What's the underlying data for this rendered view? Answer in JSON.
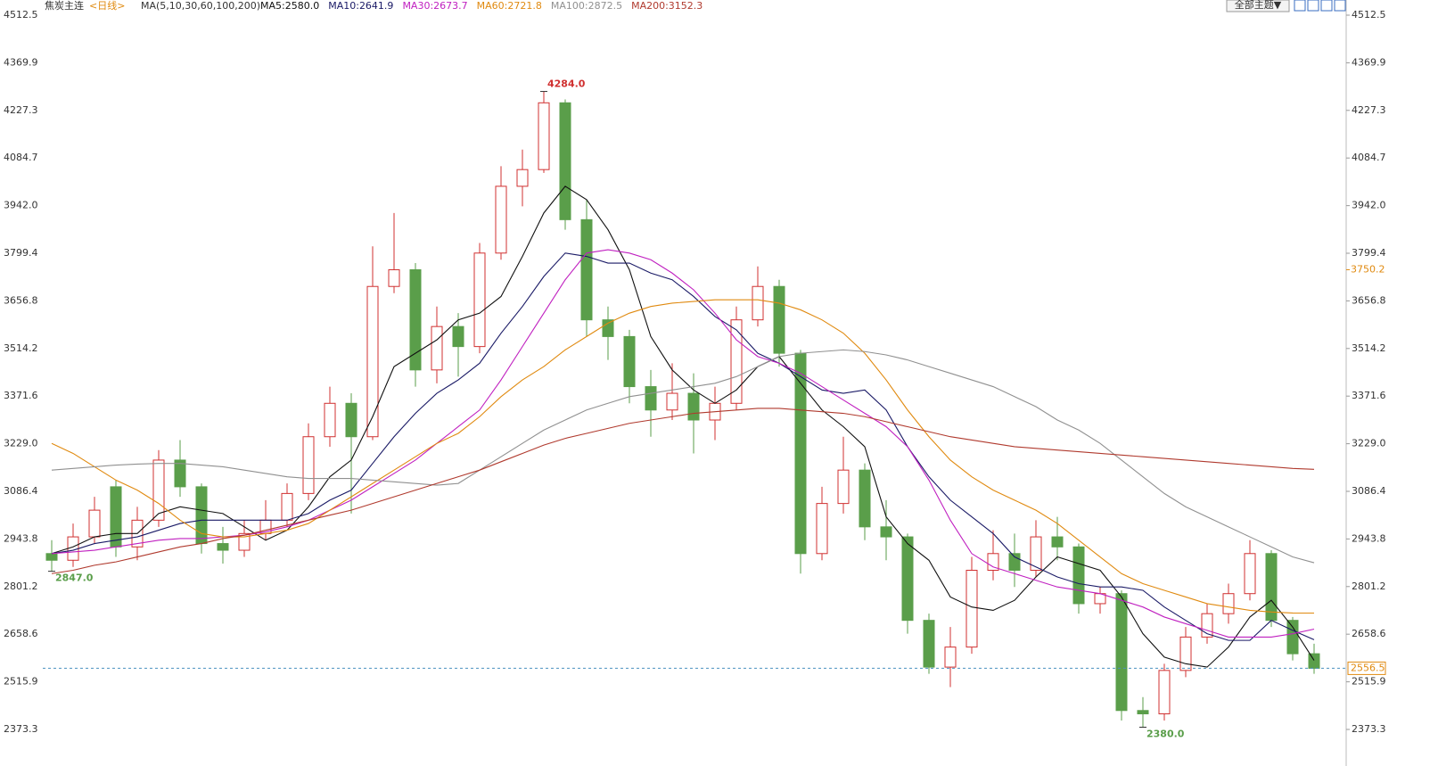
{
  "chart_data": {
    "type": "candlestick",
    "title": "焦炭主连",
    "period": "<日线>",
    "indicator": "MA(5,10,30,60,100,200)",
    "theme_button": "全部主题▼",
    "ylim": [
      2373.3,
      4512.5
    ],
    "yticks": [
      {
        "value": 2373.3,
        "label": "2373.3"
      },
      {
        "value": 2515.9,
        "label": "2515.9"
      },
      {
        "value": 2658.6,
        "label": "2658.6"
      },
      {
        "value": 2801.2,
        "label": "2801.2"
      },
      {
        "value": 2943.8,
        "label": "2943.8"
      },
      {
        "value": 3086.4,
        "label": "3086.4"
      },
      {
        "value": 3229.0,
        "label": "3229.0"
      },
      {
        "value": 3371.6,
        "label": "3371.6"
      },
      {
        "value": 3514.2,
        "label": "3514.2"
      },
      {
        "value": 3656.8,
        "label": "3656.8"
      },
      {
        "value": 3799.4,
        "label": "3799.4"
      },
      {
        "value": 3942.0,
        "label": "3942.0"
      },
      {
        "value": 4084.7,
        "label": "4084.7"
      },
      {
        "value": 4227.3,
        "label": "4227.3"
      },
      {
        "value": 4369.9,
        "label": "4369.9"
      },
      {
        "value": 4512.5,
        "label": "4512.5"
      }
    ],
    "up_color": "#d03030",
    "down_color": "#5a9e4a",
    "open": [
      2900,
      2880,
      2950,
      3100,
      2920,
      3000,
      3180,
      3100,
      2930,
      2910,
      2960,
      3000,
      3080,
      3250,
      3350,
      3250,
      3700,
      3750,
      3450,
      3580,
      3520,
      3800,
      4000,
      4050,
      4250,
      3900,
      3600,
      3550,
      3400,
      3330,
      3380,
      3300,
      3350,
      3600,
      3700,
      3500,
      2900,
      3050,
      3150,
      2980,
      2950,
      2700,
      2560,
      2620,
      2850,
      2900,
      2850,
      2950,
      2920,
      2750,
      2780,
      2430,
      2420,
      2550,
      2650,
      2720,
      2780,
      2900,
      2700,
      2600
    ],
    "high": [
      2940,
      2990,
      3070,
      3120,
      3040,
      3210,
      3240,
      3110,
      2980,
      3000,
      3060,
      3110,
      3290,
      3400,
      3380,
      3820,
      3920,
      3770,
      3640,
      3620,
      3830,
      4060,
      4110,
      4284,
      4260,
      3960,
      3640,
      3570,
      3450,
      3470,
      3440,
      3400,
      3640,
      3760,
      3720,
      3510,
      3100,
      3250,
      3170,
      3060,
      2960,
      2720,
      2680,
      2890,
      2970,
      2960,
      3000,
      3010,
      2930,
      2800,
      2790,
      2470,
      2570,
      2680,
      2750,
      2810,
      2940,
      2910,
      2710,
      2630
    ],
    "low": [
      2847,
      2860,
      2930,
      2890,
      2880,
      2980,
      3070,
      2900,
      2870,
      2890,
      2940,
      2980,
      3060,
      3220,
      3020,
      3240,
      3680,
      3400,
      3410,
      3430,
      3500,
      3780,
      3940,
      4040,
      3870,
      3550,
      3480,
      3350,
      3250,
      3300,
      3200,
      3240,
      3330,
      3580,
      3460,
      2840,
      2880,
      3020,
      2940,
      2880,
      2660,
      2540,
      2500,
      2600,
      2820,
      2800,
      2830,
      2880,
      2720,
      2720,
      2400,
      2380,
      2400,
      2530,
      2630,
      2690,
      2760,
      2680,
      2580,
      2540
    ],
    "close": [
      2880,
      2950,
      3030,
      2920,
      3000,
      3180,
      3100,
      2930,
      2910,
      2960,
      3000,
      3080,
      3250,
      3350,
      3250,
      3700,
      3750,
      3450,
      3580,
      3520,
      3800,
      4000,
      4050,
      4250,
      3900,
      3600,
      3550,
      3400,
      3330,
      3380,
      3300,
      3350,
      3600,
      3700,
      3500,
      2900,
      3050,
      3150,
      2980,
      2950,
      2700,
      2560,
      2620,
      2850,
      2900,
      2850,
      2950,
      2920,
      2750,
      2780,
      2430,
      2420,
      2550,
      2650,
      2720,
      2780,
      2900,
      2700,
      2600,
      2556.5
    ],
    "series": [
      {
        "name": "MA5:2580.0",
        "color": "#111111",
        "values": [
          2900,
          2920,
          2950,
          2960,
          2960,
          3020,
          3040,
          3030,
          3020,
          2980,
          2940,
          2970,
          3040,
          3130,
          3180,
          3310,
          3460,
          3500,
          3540,
          3600,
          3620,
          3670,
          3790,
          3920,
          4000,
          3960,
          3870,
          3750,
          3550,
          3450,
          3390,
          3350,
          3390,
          3460,
          3490,
          3410,
          3330,
          3280,
          3220,
          3010,
          2930,
          2880,
          2770,
          2740,
          2730,
          2760,
          2830,
          2890,
          2870,
          2850,
          2770,
          2660,
          2590,
          2570,
          2560,
          2620,
          2710,
          2760,
          2680,
          2580
        ]
      },
      {
        "name": "MA10:2641.9",
        "color": "#1a1a66",
        "values": [
          2900,
          2910,
          2930,
          2940,
          2950,
          2970,
          2990,
          3000,
          3000,
          3000,
          3000,
          3000,
          3020,
          3060,
          3090,
          3170,
          3250,
          3320,
          3380,
          3420,
          3470,
          3560,
          3640,
          3730,
          3800,
          3790,
          3770,
          3770,
          3740,
          3720,
          3670,
          3610,
          3570,
          3500,
          3470,
          3430,
          3390,
          3380,
          3390,
          3330,
          3220,
          3130,
          3060,
          3010,
          2960,
          2890,
          2860,
          2830,
          2810,
          2800,
          2800,
          2790,
          2740,
          2700,
          2660,
          2640,
          2640,
          2700,
          2670,
          2641.9
        ]
      },
      {
        "name": "MA30:2673.7",
        "color": "#c020c0",
        "values": [
          2900,
          2905,
          2910,
          2920,
          2930,
          2940,
          2945,
          2945,
          2950,
          2955,
          2965,
          2980,
          3000,
          3030,
          3060,
          3100,
          3140,
          3180,
          3230,
          3280,
          3330,
          3420,
          3520,
          3620,
          3720,
          3800,
          3810,
          3800,
          3780,
          3740,
          3690,
          3620,
          3540,
          3490,
          3470,
          3440,
          3400,
          3360,
          3320,
          3280,
          3220,
          3120,
          3000,
          2900,
          2860,
          2840,
          2820,
          2800,
          2790,
          2780,
          2760,
          2740,
          2710,
          2690,
          2670,
          2650,
          2650,
          2650,
          2660,
          2673.7
        ]
      },
      {
        "name": "MA60:2721.8",
        "color": "#e08a10",
        "values": [
          3230,
          3200,
          3160,
          3120,
          3090,
          3050,
          3000,
          2960,
          2950,
          2950,
          2960,
          2970,
          2990,
          3030,
          3070,
          3110,
          3150,
          3190,
          3230,
          3260,
          3310,
          3370,
          3420,
          3460,
          3510,
          3550,
          3590,
          3620,
          3640,
          3650,
          3655,
          3660,
          3660,
          3660,
          3650,
          3630,
          3600,
          3560,
          3500,
          3420,
          3330,
          3250,
          3180,
          3130,
          3090,
          3060,
          3030,
          2990,
          2940,
          2890,
          2840,
          2810,
          2790,
          2770,
          2750,
          2740,
          2730,
          2725,
          2722,
          2721.8
        ]
      },
      {
        "name": "MA100:2872.5",
        "color": "#909090",
        "values": [
          3150,
          3155,
          3160,
          3165,
          3168,
          3170,
          3170,
          3165,
          3160,
          3150,
          3140,
          3130,
          3125,
          3125,
          3125,
          3120,
          3115,
          3110,
          3105,
          3110,
          3150,
          3190,
          3230,
          3270,
          3300,
          3330,
          3350,
          3370,
          3380,
          3390,
          3400,
          3410,
          3430,
          3460,
          3490,
          3500,
          3505,
          3510,
          3505,
          3495,
          3480,
          3460,
          3440,
          3420,
          3400,
          3370,
          3340,
          3300,
          3270,
          3230,
          3180,
          3130,
          3080,
          3040,
          3010,
          2980,
          2950,
          2920,
          2890,
          2872.5
        ]
      },
      {
        "name": "MA200:3152.3",
        "color": "#b03a2e",
        "values": [
          2840,
          2850,
          2865,
          2875,
          2890,
          2905,
          2920,
          2930,
          2945,
          2955,
          2970,
          2985,
          3000,
          3015,
          3030,
          3050,
          3070,
          3090,
          3110,
          3130,
          3150,
          3175,
          3200,
          3225,
          3245,
          3260,
          3275,
          3290,
          3300,
          3310,
          3320,
          3325,
          3330,
          3335,
          3335,
          3330,
          3325,
          3320,
          3310,
          3295,
          3280,
          3265,
          3250,
          3240,
          3230,
          3220,
          3215,
          3210,
          3205,
          3200,
          3195,
          3190,
          3185,
          3180,
          3175,
          3170,
          3165,
          3160,
          3155,
          3152.3
        ]
      }
    ],
    "annotations": [
      {
        "value": 4284,
        "label": "4284.0"
      },
      {
        "value": 2847,
        "label": "2847.0"
      },
      {
        "value": 2380,
        "label": "2380.0"
      }
    ],
    "price_markers": [
      {
        "value": 3750.2,
        "label": "3750.2",
        "color": "#e08a10"
      },
      {
        "value": 2556.5,
        "label": "2556.5",
        "color": "#e08a10",
        "current": true
      }
    ]
  }
}
